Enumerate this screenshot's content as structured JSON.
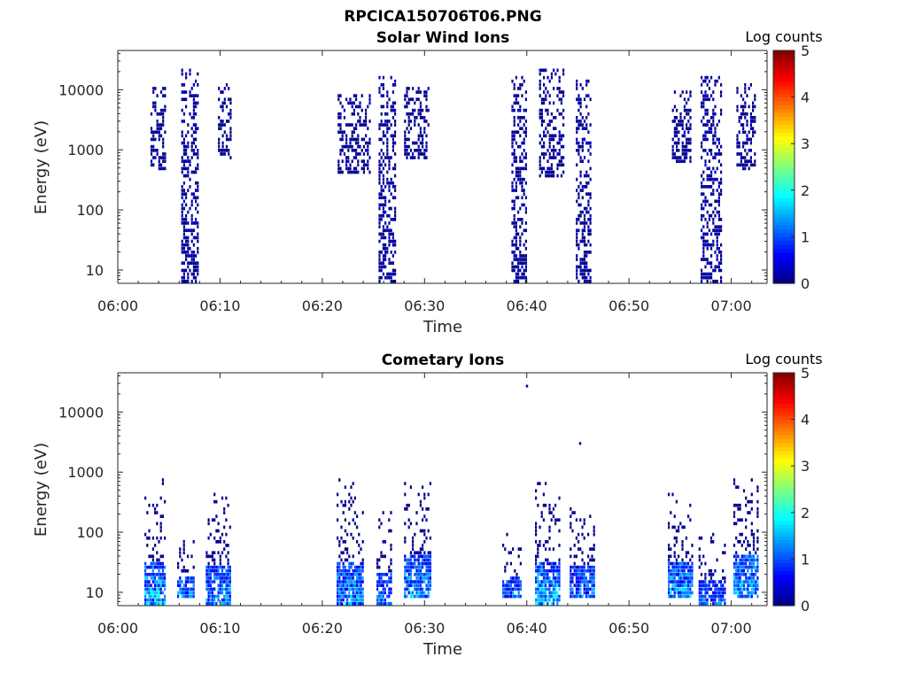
{
  "figure": {
    "title": "RPCICA150706T06.PNG"
  },
  "colorbar_label": "Log counts",
  "colormap": [
    "#00007f",
    "#0000ff",
    "#007fff",
    "#00ffff",
    "#7fff7f",
    "#ffff00",
    "#ff7f00",
    "#ff0000",
    "#7f0000"
  ],
  "chart_data": [
    {
      "type": "heatmap",
      "title": "Solar Wind Ions",
      "xlabel": "Time",
      "ylabel": "Energy (eV)",
      "x_ticks": [
        "06:00",
        "06:10",
        "06:20",
        "06:30",
        "06:40",
        "06:50",
        "07:00"
      ],
      "x_tick_minutes": [
        0,
        10,
        20,
        30,
        40,
        50,
        60
      ],
      "xlim_minutes": [
        0,
        63.5
      ],
      "y_scale": "log",
      "y_ticks": [
        "10",
        "100",
        "1000",
        "10000"
      ],
      "y_tick_values": [
        10,
        100,
        1000,
        10000
      ],
      "ylim": [
        6,
        45000
      ],
      "colorbar": {
        "label": "Log counts",
        "ticks": [
          "0",
          "1",
          "2",
          "3",
          "4",
          "5"
        ],
        "range": [
          0,
          5
        ]
      },
      "bursts": [
        {
          "t_start": 3.2,
          "t_end": 4.6,
          "e_low": 450,
          "e_high": 11000,
          "peak_log_counts": 0.2
        },
        {
          "t_start": 6.2,
          "t_end": 7.9,
          "e_low": 6,
          "e_high": 22000,
          "peak_log_counts": 0.3
        },
        {
          "t_start": 9.8,
          "t_end": 11.1,
          "e_low": 650,
          "e_high": 15000,
          "peak_log_counts": 0.2
        },
        {
          "t_start": 21.5,
          "t_end": 24.6,
          "e_low": 400,
          "e_high": 9000,
          "peak_log_counts": 0.2
        },
        {
          "t_start": 25.5,
          "t_end": 27.2,
          "e_low": 6,
          "e_high": 16000,
          "peak_log_counts": 0.3
        },
        {
          "t_start": 28.0,
          "t_end": 30.4,
          "e_low": 700,
          "e_high": 11000,
          "peak_log_counts": 0.2
        },
        {
          "t_start": 38.5,
          "t_end": 40.0,
          "e_low": 6,
          "e_high": 16000,
          "peak_log_counts": 0.3
        },
        {
          "t_start": 41.2,
          "t_end": 43.6,
          "e_low": 350,
          "e_high": 24000,
          "peak_log_counts": 0.2
        },
        {
          "t_start": 44.8,
          "t_end": 46.2,
          "e_low": 6,
          "e_high": 15000,
          "peak_log_counts": 0.3
        },
        {
          "t_start": 54.2,
          "t_end": 56.1,
          "e_low": 600,
          "e_high": 10000,
          "peak_log_counts": 0.2
        },
        {
          "t_start": 57.0,
          "t_end": 59.0,
          "e_low": 6,
          "e_high": 16000,
          "peak_log_counts": 0.3
        },
        {
          "t_start": 60.5,
          "t_end": 62.4,
          "e_low": 450,
          "e_high": 12000,
          "peak_log_counts": 0.2
        }
      ]
    },
    {
      "type": "heatmap",
      "title": "Cometary Ions",
      "xlabel": "Time",
      "ylabel": "Energy (eV)",
      "x_ticks": [
        "06:00",
        "06:10",
        "06:20",
        "06:30",
        "06:40",
        "06:50",
        "07:00"
      ],
      "x_tick_minutes": [
        0,
        10,
        20,
        30,
        40,
        50,
        60
      ],
      "xlim_minutes": [
        0,
        63.5
      ],
      "y_scale": "log",
      "y_ticks": [
        "10",
        "100",
        "1000",
        "10000"
      ],
      "y_tick_values": [
        10,
        100,
        1000,
        10000
      ],
      "ylim": [
        6,
        45000
      ],
      "colorbar": {
        "label": "Log counts",
        "ticks": [
          "0",
          "1",
          "2",
          "3",
          "4",
          "5"
        ],
        "range": [
          0,
          5
        ]
      },
      "bursts": [
        {
          "t_start": 2.6,
          "t_end": 4.6,
          "e_low": 6,
          "e_high": 800,
          "peak_log_counts": 2.2
        },
        {
          "t_start": 5.8,
          "t_end": 7.4,
          "e_low": 8,
          "e_high": 90,
          "peak_log_counts": 1.8
        },
        {
          "t_start": 8.6,
          "t_end": 11.0,
          "e_low": 6,
          "e_high": 500,
          "peak_log_counts": 1.9
        },
        {
          "t_start": 21.4,
          "t_end": 24.0,
          "e_low": 6,
          "e_high": 800,
          "peak_log_counts": 2.0
        },
        {
          "t_start": 25.3,
          "t_end": 26.8,
          "e_low": 6,
          "e_high": 250,
          "peak_log_counts": 1.7
        },
        {
          "t_start": 28.0,
          "t_end": 30.6,
          "e_low": 8,
          "e_high": 800,
          "peak_log_counts": 1.9
        },
        {
          "t_start": 37.6,
          "t_end": 39.4,
          "e_low": 8,
          "e_high": 100,
          "peak_log_counts": 1.6
        },
        {
          "t_start": 40.8,
          "t_end": 43.2,
          "e_low": 6,
          "e_high": 700,
          "peak_log_counts": 2.2
        },
        {
          "t_start": 44.2,
          "t_end": 46.6,
          "e_low": 8,
          "e_high": 250,
          "peak_log_counts": 1.7
        },
        {
          "t_start": 53.8,
          "t_end": 56.2,
          "e_low": 8,
          "e_high": 450,
          "peak_log_counts": 2.0
        },
        {
          "t_start": 56.8,
          "t_end": 59.4,
          "e_low": 6,
          "e_high": 100,
          "peak_log_counts": 1.6
        },
        {
          "t_start": 60.2,
          "t_end": 62.6,
          "e_low": 8,
          "e_high": 1000,
          "peak_log_counts": 2.1
        }
      ],
      "isolated_points": [
        {
          "t": 40.0,
          "energy": 27000,
          "log_counts": 0.1
        },
        {
          "t": 45.2,
          "energy": 3000,
          "log_counts": 0.1
        }
      ]
    }
  ]
}
